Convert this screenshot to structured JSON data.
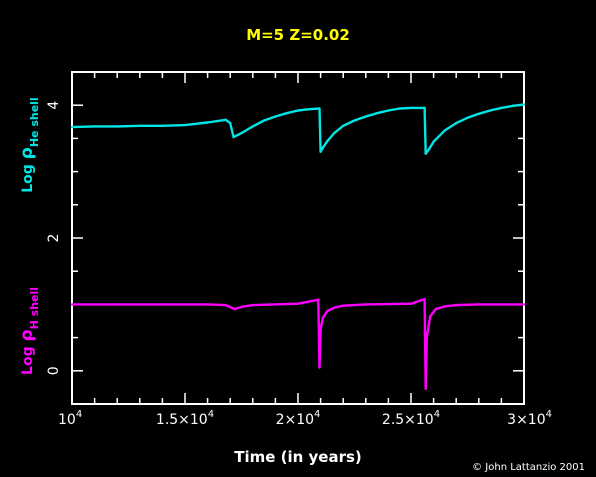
{
  "chart_data": {
    "type": "line",
    "title": "M=5 Z=0.02",
    "xlabel": "Time (in years)",
    "xlim": [
      10000,
      30000
    ],
    "ylim": [
      -0.5,
      4.5
    ],
    "x_ticks": [
      {
        "value": 10000,
        "base": "10",
        "exp": "4"
      },
      {
        "value": 15000,
        "base": "1.5×10",
        "exp": "4"
      },
      {
        "value": 20000,
        "base": "2×10",
        "exp": "4"
      },
      {
        "value": 25000,
        "base": "2.5×10",
        "exp": "4"
      },
      {
        "value": 30000,
        "base": "3×10",
        "exp": "4"
      }
    ],
    "y_ticks": [
      0,
      2,
      4
    ],
    "ylabels": [
      {
        "prefix": "Log ",
        "symbol": "ρ",
        "sub": "He shell",
        "color": "#00e5e5",
        "y_center": 3.4
      },
      {
        "prefix": "Log ",
        "symbol": "ρ",
        "sub": "H shell",
        "color": "#ff00ff",
        "y_center": 0.6
      }
    ],
    "series": [
      {
        "color": "#00e5e5",
        "x": [
          10000,
          11000,
          12000,
          13000,
          14000,
          15000,
          16000,
          16800,
          17000,
          17150,
          17500,
          18000,
          18500,
          19000,
          19500,
          20000,
          20500,
          20950,
          21000,
          21100,
          21300,
          21600,
          22000,
          22500,
          23000,
          23500,
          24000,
          24500,
          25000,
          25600,
          25650,
          25800,
          26000,
          26500,
          27000,
          27500,
          28000,
          28500,
          29000,
          29500,
          30000
        ],
        "values": [
          3.67,
          3.68,
          3.68,
          3.69,
          3.69,
          3.7,
          3.74,
          3.78,
          3.73,
          3.52,
          3.58,
          3.68,
          3.77,
          3.83,
          3.88,
          3.92,
          3.94,
          3.95,
          3.3,
          3.36,
          3.46,
          3.58,
          3.69,
          3.77,
          3.83,
          3.88,
          3.92,
          3.95,
          3.96,
          3.96,
          3.27,
          3.34,
          3.45,
          3.62,
          3.73,
          3.81,
          3.87,
          3.92,
          3.96,
          3.99,
          4.01
        ]
      },
      {
        "color": "#ff00ff",
        "x": [
          10000,
          12000,
          14000,
          16000,
          16800,
          17200,
          17600,
          18000,
          20000,
          20900,
          20950,
          21000,
          21100,
          21300,
          21600,
          22000,
          23000,
          25000,
          25600,
          25650,
          25700,
          25850,
          26100,
          26500,
          27000,
          28000,
          30000
        ],
        "values": [
          1.0,
          1.0,
          1.0,
          1.0,
          0.99,
          0.93,
          0.97,
          0.99,
          1.01,
          1.07,
          0.05,
          0.62,
          0.8,
          0.9,
          0.95,
          0.98,
          1.0,
          1.01,
          1.08,
          -0.27,
          0.5,
          0.82,
          0.93,
          0.97,
          0.99,
          1.0,
          1.0
        ]
      }
    ],
    "grid": false
  },
  "credit": "© John Lattanzio 2001"
}
